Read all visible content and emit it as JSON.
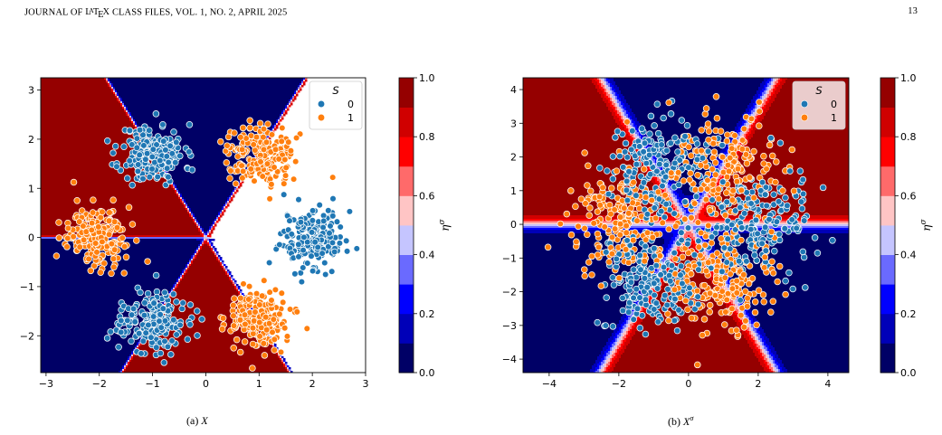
{
  "header": {
    "running_head_before": "JOURNAL OF ",
    "running_head_after": " CLASS FILES, VOL. 1, NO. 2, APRIL 2025",
    "latex_logo": "LATEX",
    "page_number": "13"
  },
  "colors": {
    "class_0": "#1f77b4",
    "class_1": "#ff7f0e",
    "colormap": "seismic"
  },
  "figure": {
    "captions": [
      {
        "label": "(a)",
        "symbol": "X",
        "superscript": ""
      },
      {
        "label": "(b)",
        "symbol": "X",
        "superscript": "σ"
      }
    ]
  },
  "chart_data": [
    {
      "type": "scatter",
      "panel": "(a)",
      "title": "",
      "xlabel": "",
      "ylabel": "",
      "xlim": [
        -3.1,
        3.0
      ],
      "ylim": [
        -2.75,
        3.25
      ],
      "xticks": [
        -3,
        -2,
        -1,
        0,
        1,
        2,
        3
      ],
      "yticks": [
        -2,
        -1,
        0,
        1,
        2,
        3
      ],
      "legend": {
        "title": "S",
        "placement": "top-right",
        "entries": [
          "0",
          "1"
        ]
      },
      "background": "contourf of η^σ over 6 sectors: blue sectors centered at 90°, 210°, 330°; red sectors centered at 30°, 150°, 270°",
      "series": [
        {
          "name": "0",
          "color": "#1f77b4",
          "clusters": [
            {
              "center": [
                -1.0,
                1.7
              ],
              "spread": 0.3,
              "n": 200
            },
            {
              "center": [
                2.0,
                0.0
              ],
              "spread": 0.3,
              "n": 200
            },
            {
              "center": [
                -1.0,
                -1.7
              ],
              "spread": 0.3,
              "n": 200
            }
          ]
        },
        {
          "name": "1",
          "color": "#ff7f0e",
          "clusters": [
            {
              "center": [
                1.0,
                1.7
              ],
              "spread": 0.3,
              "n": 200
            },
            {
              "center": [
                -2.0,
                0.0
              ],
              "spread": 0.3,
              "n": 200
            },
            {
              "center": [
                1.0,
                -1.7
              ],
              "spread": 0.3,
              "n": 200
            }
          ]
        }
      ]
    },
    {
      "type": "scatter",
      "panel": "(b)",
      "title": "",
      "xlabel": "",
      "ylabel": "",
      "xlim": [
        -4.75,
        4.6
      ],
      "ylim": [
        -4.4,
        4.35
      ],
      "xticks": [
        -4,
        -2,
        0,
        2,
        4
      ],
      "yticks": [
        -4,
        -3,
        -2,
        -1,
        0,
        1,
        2,
        3,
        4
      ],
      "legend": {
        "title": "S",
        "placement": "top-right",
        "entries": [
          "0",
          "1"
        ]
      },
      "background": "contourf of η^σ over 6 sectors with wide transition bands",
      "series": [
        {
          "name": "0",
          "color": "#1f77b4",
          "clusters": [
            {
              "center": [
                -1.0,
                1.7
              ],
              "spread": 0.75,
              "n": 200
            },
            {
              "center": [
                2.0,
                0.0
              ],
              "spread": 0.75,
              "n": 200
            },
            {
              "center": [
                -1.0,
                -1.7
              ],
              "spread": 0.75,
              "n": 200
            }
          ]
        },
        {
          "name": "1",
          "color": "#ff7f0e",
          "clusters": [
            {
              "center": [
                1.0,
                1.7
              ],
              "spread": 0.75,
              "n": 200
            },
            {
              "center": [
                -2.0,
                0.0
              ],
              "spread": 0.75,
              "n": 200
            },
            {
              "center": [
                1.0,
                -1.7
              ],
              "spread": 0.75,
              "n": 200
            }
          ]
        }
      ]
    }
  ],
  "colorbar": {
    "label": "η",
    "label_superscript": "σ",
    "ticks": [
      "0.0",
      "0.2",
      "0.4",
      "0.6",
      "0.8",
      "1.0"
    ],
    "levels": [
      0.0,
      0.1,
      0.2,
      0.3,
      0.4,
      0.5,
      0.6,
      0.7,
      0.8,
      0.9,
      1.0
    ],
    "level_colors": [
      "#000066",
      "#0000b8",
      "#0000ff",
      "#6a6aff",
      "#c5c5ff",
      "#ffc5c5",
      "#ff6a6a",
      "#ff0000",
      "#d00000",
      "#950000"
    ]
  }
}
